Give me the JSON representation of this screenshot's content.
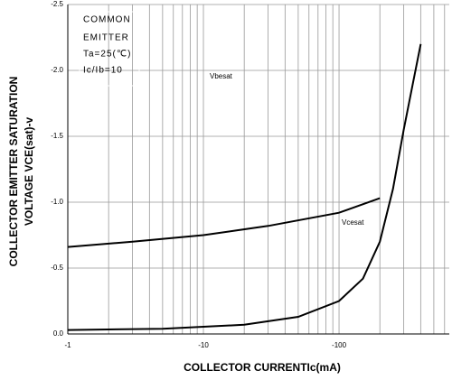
{
  "chart_data": {
    "type": "line",
    "xlabel": "COLLECTOR CURRENTIc(mA)",
    "ylabel": [
      "COLLECTOR EMITTER SATURATION",
      "VOLTAGE VCE(sat)-v"
    ],
    "annotations": [
      "COMMON",
      "EMITTER",
      "Ta=25(℃)",
      "Ic/Ib=10"
    ],
    "xscale": "log",
    "grid": true,
    "xlim": [
      -1,
      -650
    ],
    "xticks": [
      -1,
      -10,
      -100
    ],
    "xminorticks": [
      -2,
      -3,
      -4,
      -5,
      -6,
      -7,
      -8,
      -9,
      -20,
      -30,
      -40,
      -50,
      -60,
      -70,
      -80,
      -90,
      -200,
      -300,
      -400,
      -500,
      -600
    ],
    "ylim": [
      0,
      -2.5
    ],
    "yticks": [
      {
        "value": 0,
        "label": "0.0"
      },
      -0.5,
      {
        "value": -1,
        "label": "-1.0"
      },
      -1.5,
      {
        "value": -2,
        "label": "-2.0"
      },
      -2.5
    ],
    "series": [
      {
        "name": "Vcesat",
        "color": "#000000",
        "x": [
          -1,
          -3,
          -10,
          -30,
          -100,
          -200
        ],
        "values": [
          -0.66,
          -0.7,
          -0.75,
          -0.82,
          -0.92,
          -1.03
        ]
      },
      {
        "name": "Vbesat",
        "color": "#000000",
        "x": [
          -1,
          -5,
          -20,
          -50,
          -100,
          -150,
          -200,
          -250,
          -300,
          -350,
          -400
        ],
        "values": [
          -0.03,
          -0.04,
          -0.07,
          -0.13,
          -0.25,
          -0.42,
          -0.7,
          -1.1,
          -1.55,
          -1.9,
          -2.2
        ]
      }
    ]
  }
}
